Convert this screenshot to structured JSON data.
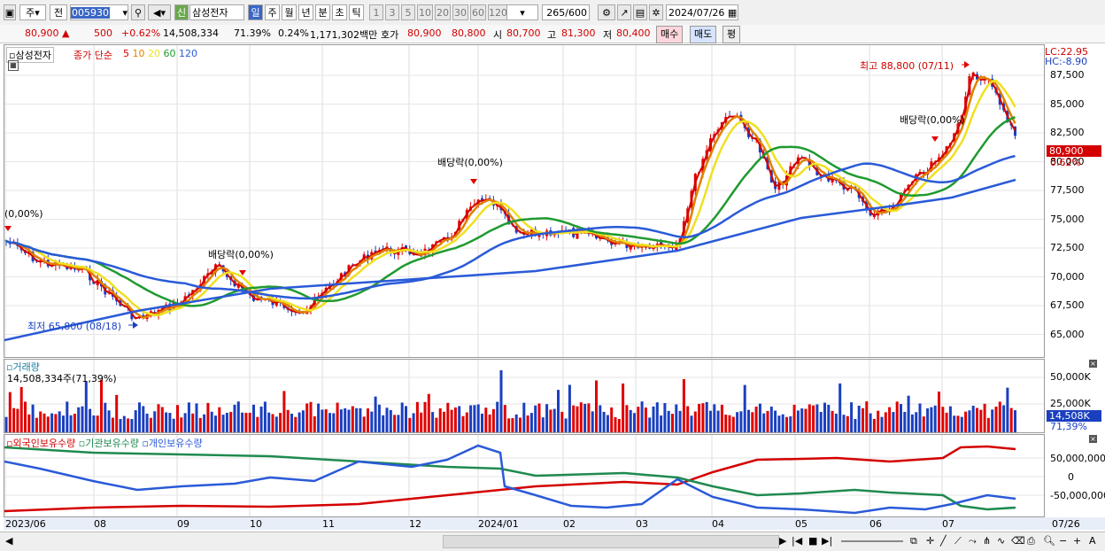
{
  "toolbar": {
    "kind": "주",
    "kind2": "전",
    "code": "005930",
    "market_badge": "신",
    "stock_name": "삼성전자",
    "periods": [
      "일",
      "주",
      "월",
      "년",
      "분",
      "초",
      "틱"
    ],
    "nums": [
      "1",
      "3",
      "5",
      "10",
      "20",
      "30",
      "60",
      "120"
    ],
    "count": "265",
    "count_total": "/600",
    "date": "2024/07/26"
  },
  "info": {
    "price": "80,900 ▲",
    "change": "500",
    "change_pct": "+0.62%",
    "volume": "14,508,334",
    "vol_ratio": "71.39%",
    "turnover": "0.24%",
    "amount": "1,171,302백만",
    "ask_label": "호가",
    "ask1": "80,900",
    "ask2": "80,800",
    "open_label": "시",
    "open": "80,700",
    "high_label": "고",
    "high": "81,300",
    "low_label": "저",
    "low": "80,400",
    "buy_btn": "매수",
    "sell_btn": "매도",
    "avg_btn": "평"
  },
  "price_panel": {
    "name": "삼성전자",
    "legend_title": "종가 단순",
    "ma": [
      "5",
      "10",
      "20",
      "60",
      "120"
    ],
    "ma_colors": [
      "#d40000",
      "#e08000",
      "#f0e020",
      "#1f9a2f",
      "#2a5ad8"
    ],
    "lc": "LC:22.95",
    "hc": "HC:-8.90",
    "ylabels": [
      "87,500",
      "85,000",
      "82,500",
      "80,000",
      "77,500",
      "75,000",
      "72,500",
      "70,000",
      "67,500",
      "65,000"
    ],
    "cur_price": "80,900",
    "cur_pct": "0.62%",
    "high_note": "최고 88,800 (07/11)",
    "low_note": "최저 65,800 (08/18)",
    "div1": "(0,00%)",
    "div2": "배당락(0,00%)",
    "div3": "배당락(0,00%)",
    "div4": "배당락(0,00%)"
  },
  "volume_panel": {
    "title": "거래량",
    "value": "14,508,334주(71,39%)",
    "ylabels": [
      "50,000K",
      "25,000K"
    ],
    "cur": "14,508K",
    "cur_pct": "71,39%"
  },
  "holding_panel": {
    "legend": [
      "외국인보유수량",
      "기관보유수량",
      "개인보유수량"
    ],
    "colors": [
      "#d40000",
      "#1f8a4f",
      "#2a5ad8"
    ],
    "ylabels": [
      "50,000,000",
      "0",
      "-50,000,000"
    ]
  },
  "xaxis": {
    "labels": [
      "2023/06",
      "08",
      "09",
      "10",
      "11",
      "12",
      "2024/01",
      "02",
      "03",
      "04",
      "05",
      "06",
      "07"
    ],
    "end": "07/26"
  }
}
